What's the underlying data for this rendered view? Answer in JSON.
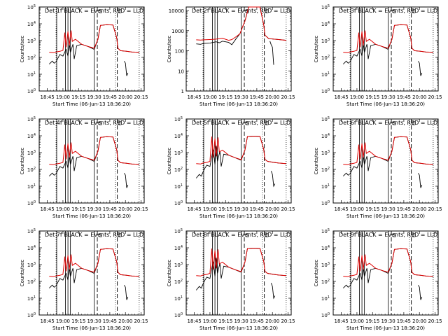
{
  "figure": {
    "xtick_labels": [
      "18:45",
      "19:00",
      "19:15",
      "19:30",
      "19:45",
      "20:00",
      "20:15"
    ],
    "xtick_hours": [
      18.75,
      19.0,
      19.25,
      19.5,
      19.75,
      20.0,
      20.25
    ],
    "x_range_hours": [
      18.62,
      20.3
    ],
    "xlabel": "Start Time (06-Jun-13 18:36:20)",
    "ylabel": "Counts/sec",
    "series_colors": {
      "events": "#000000",
      "lld": "#e00000"
    },
    "vline_solid_hours": [
      18.9,
      19.04,
      19.08,
      19.12,
      19.5
    ],
    "vline_dashed_hours": [
      19.55,
      19.87
    ],
    "vline_dotted_hours": [
      18.89,
      19.84,
      20.22
    ],
    "marker_letters": [
      {
        "text": "S",
        "hour": 19.55
      },
      {
        "text": "E",
        "hour": 19.86
      }
    ]
  },
  "chart_data": [
    {
      "type": "line",
      "title": "Det 1f BLACK = Events, RED = LLD",
      "scale": "log",
      "ylim": [
        1,
        100000
      ],
      "ytick_labels": [
        "10^0",
        "10^1",
        "10^2",
        "10^3",
        "10^4",
        "10^5"
      ],
      "ytick_values": [
        1,
        10,
        100,
        1000,
        10000,
        100000
      ],
      "profile": "A",
      "series": [
        {
          "name": "Events",
          "color": "#000000",
          "x_hours": [
            18.78,
            18.89,
            18.95,
            19.0,
            19.05,
            19.1,
            19.13,
            19.16,
            19.2,
            19.3,
            19.4,
            19.5,
            19.56,
            19.6,
            19.8,
            19.88,
            19.92,
            20.02,
            20.1,
            20.22
          ],
          "y": [
            40,
            55,
            150,
            120,
            300,
            700,
            200,
            600,
            80,
            600,
            450,
            300,
            1200,
            8000,
            8500,
            350,
            250,
            230,
            210,
            200
          ]
        },
        {
          "name": "LLD",
          "color": "#e00000",
          "x_hours": [
            18.78,
            18.89,
            18.95,
            19.0,
            19.05,
            19.1,
            19.13,
            19.16,
            19.2,
            19.3,
            19.4,
            19.5,
            19.56,
            19.6,
            19.8,
            19.88,
            19.92,
            20.02,
            20.1,
            20.22
          ],
          "y": [
            200,
            210,
            230,
            260,
            3000,
            500,
            4000,
            900,
            1200,
            600,
            450,
            350,
            1200,
            8000,
            8500,
            350,
            250,
            230,
            210,
            200
          ]
        }
      ]
    },
    {
      "type": "line",
      "title": "Det 2f BLACK = Events, RED = LLD",
      "scale": "log",
      "ylim": [
        1,
        15000
      ],
      "ytick_labels": [
        "1",
        "10",
        "100",
        "1000",
        "10000"
      ],
      "ytick_values": [
        1,
        10,
        100,
        1000,
        10000
      ],
      "profile": "B",
      "series": [
        {
          "name": "Events",
          "color": "#000000",
          "x_hours": [
            18.78,
            18.9,
            19.0,
            19.1,
            19.2,
            19.3,
            19.42,
            19.5,
            19.56,
            19.62,
            19.8,
            19.88,
            19.94,
            20.1,
            20.22
          ],
          "y": [
            200,
            210,
            230,
            250,
            300,
            260,
            400,
            800,
            3000,
            15000,
            15000,
            600,
            400,
            360,
            330
          ],
          "dip": true
        },
        {
          "name": "LLD",
          "color": "#e00000",
          "x_hours": [
            18.78,
            18.9,
            19.0,
            19.1,
            19.2,
            19.3,
            19.42,
            19.5,
            19.56,
            19.62,
            19.8,
            19.88,
            19.94,
            20.1,
            20.22
          ],
          "y": [
            350,
            340,
            360,
            380,
            420,
            330,
            500,
            800,
            3000,
            15000,
            15000,
            600,
            400,
            360,
            330
          ]
        }
      ]
    },
    {
      "type": "line",
      "title": "Det 3f BLACK = Events, RED = LLD",
      "scale": "log",
      "ylim": [
        1,
        100000
      ],
      "ytick_labels": [
        "10^0",
        "10^1",
        "10^2",
        "10^3",
        "10^4",
        "10^5"
      ],
      "ytick_values": [
        1,
        10,
        100,
        1000,
        10000,
        100000
      ],
      "profile": "A",
      "series": [
        {
          "name": "Events",
          "color": "#000000"
        },
        {
          "name": "LLD",
          "color": "#e00000"
        }
      ]
    },
    {
      "type": "line",
      "title": "Det 4f BLACK = Events, RED = LLD",
      "scale": "log",
      "ylim": [
        1,
        100000
      ],
      "ytick_labels": [
        "10^0",
        "10^1",
        "10^2",
        "10^3",
        "10^4",
        "10^5"
      ],
      "ytick_values": [
        1,
        10,
        100,
        1000,
        10000,
        100000
      ],
      "profile": "A",
      "series": [
        {
          "name": "Events",
          "color": "#000000"
        },
        {
          "name": "LLD",
          "color": "#e00000"
        }
      ]
    },
    {
      "type": "line",
      "title": "Det 5f BLACK = Events, RED = LLD",
      "scale": "log",
      "ylim": [
        1,
        100000
      ],
      "ytick_labels": [
        "10^0",
        "10^1",
        "10^2",
        "10^3",
        "10^4",
        "10^5"
      ],
      "ytick_values": [
        1,
        10,
        100,
        1000,
        10000,
        100000
      ],
      "profile": "C",
      "series": [
        {
          "name": "Events",
          "color": "#000000"
        },
        {
          "name": "LLD",
          "color": "#e00000"
        }
      ]
    },
    {
      "type": "line",
      "title": "Det 6f BLACK = Events, RED = LLD",
      "scale": "log",
      "ylim": [
        1,
        100000
      ],
      "ytick_labels": [
        "10^0",
        "10^1",
        "10^2",
        "10^3",
        "10^4",
        "10^5"
      ],
      "ytick_values": [
        1,
        10,
        100,
        1000,
        10000,
        100000
      ],
      "profile": "A",
      "series": [
        {
          "name": "Events",
          "color": "#000000"
        },
        {
          "name": "LLD",
          "color": "#e00000"
        }
      ]
    },
    {
      "type": "line",
      "title": "Det 7f BLACK = Events, RED = LLD",
      "scale": "log",
      "ylim": [
        1,
        100000
      ],
      "ytick_labels": [
        "10^0",
        "10^1",
        "10^2",
        "10^3",
        "10^4",
        "10^5"
      ],
      "ytick_values": [
        1,
        10,
        100,
        1000,
        10000,
        100000
      ],
      "profile": "A",
      "series": [
        {
          "name": "Events",
          "color": "#000000"
        },
        {
          "name": "LLD",
          "color": "#e00000"
        }
      ]
    },
    {
      "type": "line",
      "title": "Det 8f BLACK = Events, RED = LLD",
      "scale": "log",
      "ylim": [
        1,
        100000
      ],
      "ytick_labels": [
        "10^0",
        "10^1",
        "10^2",
        "10^3",
        "10^4",
        "10^5"
      ],
      "ytick_values": [
        1,
        10,
        100,
        1000,
        10000,
        100000
      ],
      "profile": "C",
      "series": [
        {
          "name": "Events",
          "color": "#000000"
        },
        {
          "name": "LLD",
          "color": "#e00000"
        }
      ]
    },
    {
      "type": "line",
      "title": "Det 9f BLACK = Events, RED = LLD",
      "scale": "log",
      "ylim": [
        1,
        100000
      ],
      "ytick_labels": [
        "10^0",
        "10^1",
        "10^2",
        "10^3",
        "10^4",
        "10^5"
      ],
      "ytick_values": [
        1,
        10,
        100,
        1000,
        10000,
        100000
      ],
      "profile": "A",
      "series": [
        {
          "name": "Events",
          "color": "#000000"
        },
        {
          "name": "LLD",
          "color": "#e00000"
        }
      ]
    }
  ]
}
